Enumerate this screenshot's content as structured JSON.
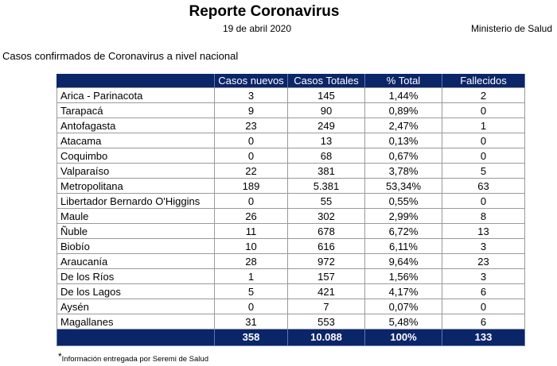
{
  "header": {
    "title": "Reporte Coronavirus",
    "date": "19 de abril 2020",
    "ministry": "Ministerio de Salud"
  },
  "subtitle": "Casos confirmados de Coronavirus a nivel nacional",
  "table": {
    "columns": [
      "",
      "Casos nuevos",
      "Casos Totales",
      "% Total",
      "Fallecidos"
    ],
    "rows": [
      {
        "region": "Arica - Parinacota",
        "new": "3",
        "total": "145",
        "pct": "1,44%",
        "deaths": "2"
      },
      {
        "region": "Tarapacá",
        "new": "9",
        "total": "90",
        "pct": "0,89%",
        "deaths": "0"
      },
      {
        "region": "Antofagasta",
        "new": "23",
        "total": "249",
        "pct": "2,47%",
        "deaths": "1"
      },
      {
        "region": "Atacama",
        "new": "0",
        "total": "13",
        "pct": "0,13%",
        "deaths": "0"
      },
      {
        "region": "Coquimbo",
        "new": "0",
        "total": "68",
        "pct": "0,67%",
        "deaths": "0"
      },
      {
        "region": "Valparaíso",
        "new": "22",
        "total": "381",
        "pct": "3,78%",
        "deaths": "5"
      },
      {
        "region": "Metropolitana",
        "new": "189",
        "total": "5.381",
        "pct": "53,34%",
        "deaths": "63"
      },
      {
        "region": "Libertador Bernardo O'Higgins",
        "new": "0",
        "total": "55",
        "pct": "0,55%",
        "deaths": "0"
      },
      {
        "region": "Maule",
        "new": "26",
        "total": "302",
        "pct": "2,99%",
        "deaths": "8"
      },
      {
        "region": "Ñuble",
        "new": "11",
        "total": "678",
        "pct": "6,72%",
        "deaths": "13"
      },
      {
        "region": "Biobío",
        "new": "10",
        "total": "616",
        "pct": "6,11%",
        "deaths": "3"
      },
      {
        "region": "Araucanía",
        "new": "28",
        "total": "972",
        "pct": "9,64%",
        "deaths": "23"
      },
      {
        "region": "De los Ríos",
        "new": "1",
        "total": "157",
        "pct": "1,56%",
        "deaths": "3"
      },
      {
        "region": "De los Lagos",
        "new": "5",
        "total": "421",
        "pct": "4,17%",
        "deaths": "6"
      },
      {
        "region": "Aysén",
        "new": "0",
        "total": "7",
        "pct": "0,07%",
        "deaths": "0"
      },
      {
        "region": "Magallanes",
        "new": "31",
        "total": "553",
        "pct": "5,48%",
        "deaths": "6"
      }
    ],
    "totals": {
      "new": "358",
      "total": "10.088",
      "pct": "100%",
      "deaths": "133"
    }
  },
  "footnote": {
    "marker": "*",
    "text": "Información entregada por Seremi de Salud"
  },
  "colors": {
    "header_bg": "#0b2569",
    "header_text": "#ffffff",
    "grid": "#9a9a9a"
  }
}
